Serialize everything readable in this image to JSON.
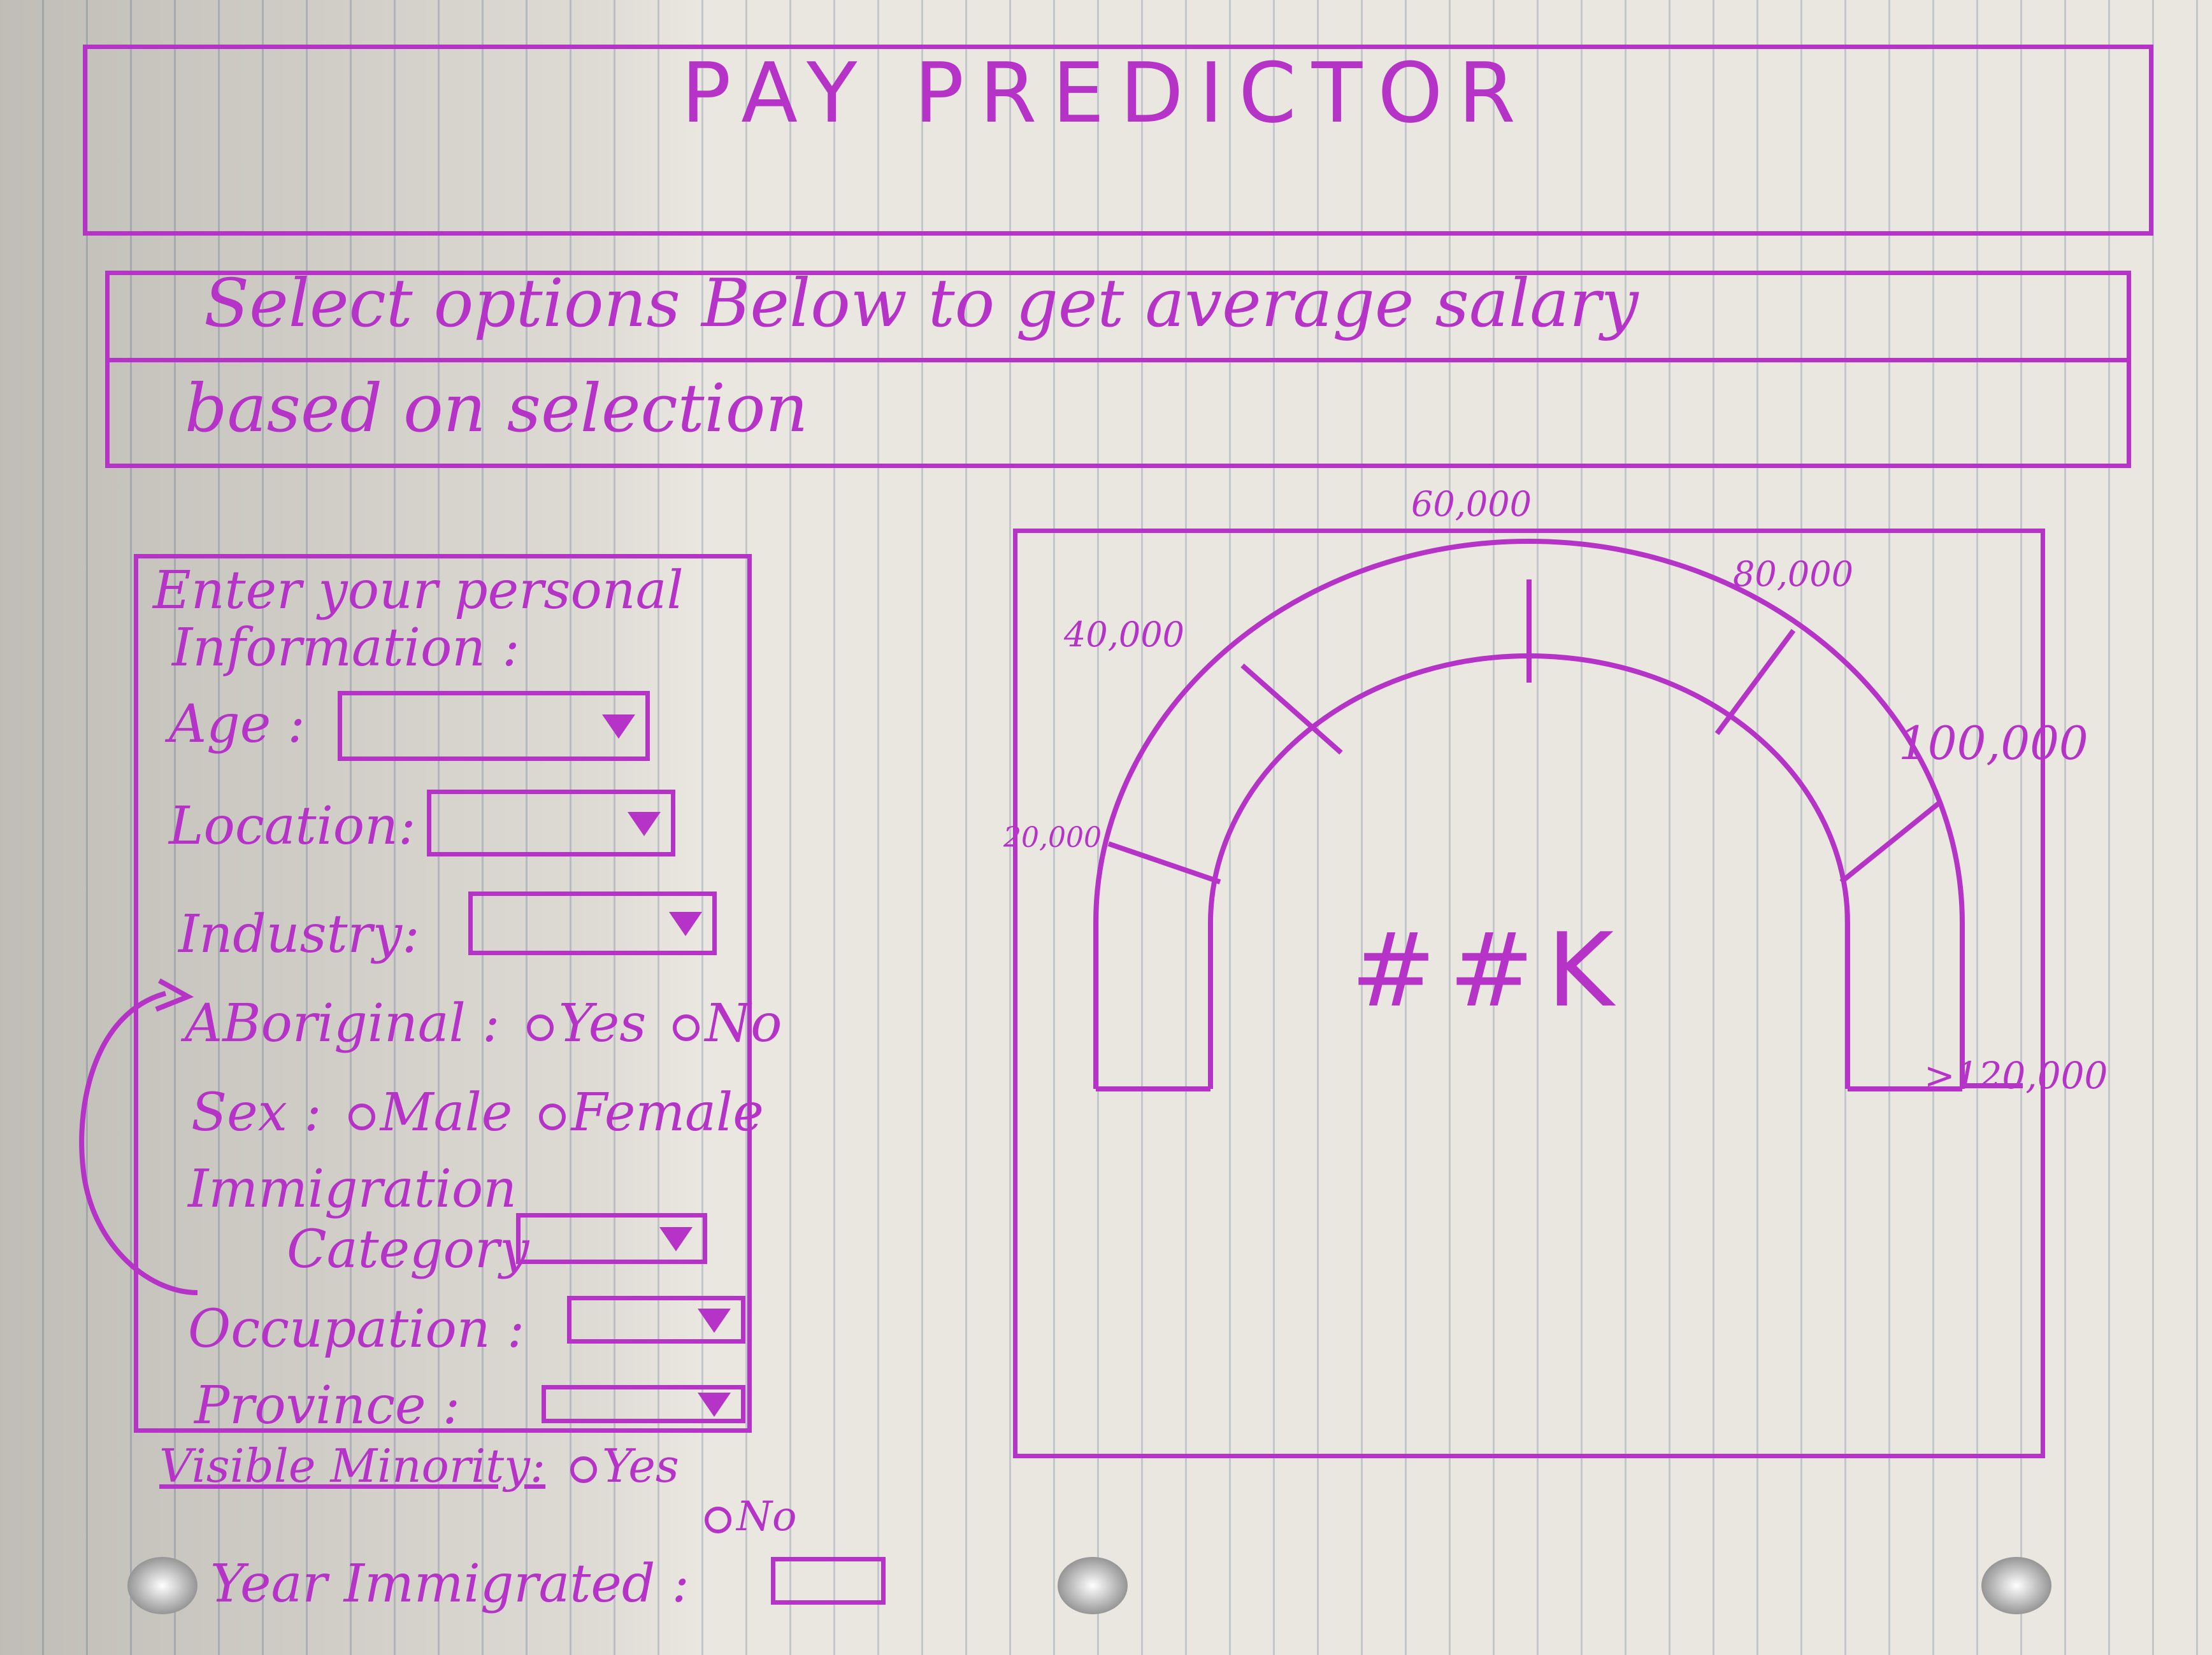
{
  "header": {
    "title": "PAY PREDICTOR"
  },
  "instructions": {
    "line1": "Select options Below to get average salary",
    "line2": "based on selection"
  },
  "form": {
    "heading_line1": "Enter your personal",
    "heading_line2": "Information :",
    "age_label": "Age :",
    "location_label": "Location:",
    "industry_label": "Industry:",
    "aboriginal_label": "ABoriginal :",
    "aboriginal_options": [
      "Yes",
      "No"
    ],
    "sex_label": "Sex :",
    "sex_options": [
      "Male",
      "Female"
    ],
    "immigration_label_line1": "Immigration",
    "immigration_label_line2": "Category",
    "occupation_label": "Occupation :",
    "province_label": "Province :",
    "visible_minority_label": "Visible Minority:",
    "visible_minority_options": [
      "Yes",
      "No"
    ],
    "year_immigrated_label": "Year Immigrated :"
  },
  "gauge": {
    "center_value": "##K",
    "ticks": [
      "20,000",
      "40,000",
      "60,000",
      "80,000",
      "100,000",
      ">120,000"
    ]
  },
  "colors": {
    "ink": "#b533c7",
    "paper": "#e9e7df"
  }
}
